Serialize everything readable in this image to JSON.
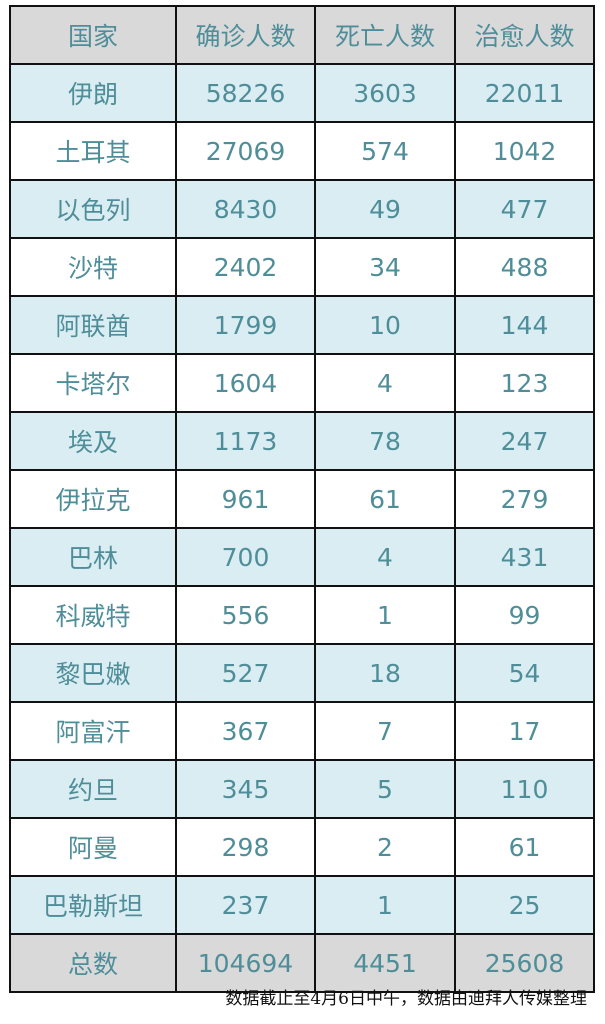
{
  "table": {
    "headers": [
      "国家",
      "确诊人数",
      "死亡人数",
      "治愈人数"
    ],
    "rows": [
      [
        "伊朗",
        "58226",
        "3603",
        "22011"
      ],
      [
        "土耳其",
        "27069",
        "574",
        "1042"
      ],
      [
        "以色列",
        "8430",
        "49",
        "477"
      ],
      [
        "沙特",
        "2402",
        "34",
        "488"
      ],
      [
        "阿联酋",
        "1799",
        "10",
        "144"
      ],
      [
        "卡塔尔",
        "1604",
        "4",
        "123"
      ],
      [
        "埃及",
        "1173",
        "78",
        "247"
      ],
      [
        "伊拉克",
        "961",
        "61",
        "279"
      ],
      [
        "巴林",
        "700",
        "4",
        "431"
      ],
      [
        "科威特",
        "556",
        "1",
        "99"
      ],
      [
        "黎巴嫩",
        "527",
        "18",
        "54"
      ],
      [
        "阿富汗",
        "367",
        "7",
        "17"
      ],
      [
        "约旦",
        "345",
        "5",
        "110"
      ],
      [
        "阿曼",
        "298",
        "2",
        "61"
      ],
      [
        "巴勒斯坦",
        "237",
        "1",
        "25"
      ]
    ],
    "total": [
      "总数",
      "104694",
      "4451",
      "25608"
    ]
  },
  "note": "数据截止至4月6日中午，数据由迪拜人传媒整理",
  "colors": {
    "header": "#d9d9d9",
    "stripe": "#daedf3",
    "text": "#4f8e99",
    "border": "#111111"
  }
}
